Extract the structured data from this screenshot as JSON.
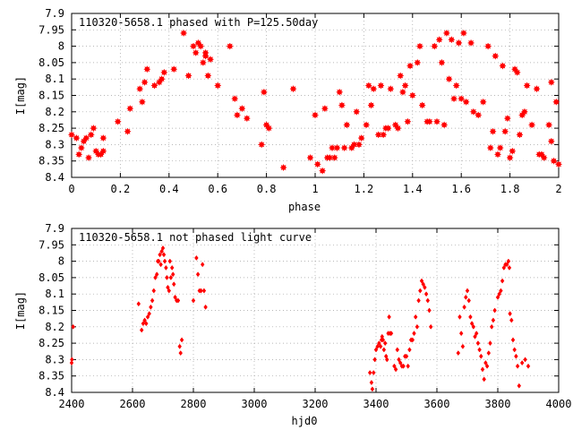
{
  "colors": {
    "points": "#ff0000",
    "axes": "#000000",
    "grid": "#a0a0a0"
  },
  "chart_data": [
    {
      "type": "scatter",
      "title": "110320-5658.1 phased with P=125.50day",
      "xlabel": "phase",
      "ylabel": "I[mag]",
      "xlim": [
        0,
        2
      ],
      "ylim": [
        8.4,
        7.9
      ],
      "y_reversed": true,
      "xticks": [
        0,
        0.2,
        0.4,
        0.6,
        0.8,
        1,
        1.2,
        1.4,
        1.6,
        1.8,
        2
      ],
      "xtick_labels": [
        "0",
        "0.2",
        "0.4",
        "0.6",
        "0.8",
        "1",
        "1.2",
        "1.4",
        "1.6",
        "1.8",
        "2"
      ],
      "yticks": [
        7.9,
        7.95,
        8,
        8.05,
        8.1,
        8.15,
        8.2,
        8.25,
        8.3,
        8.35,
        8.4
      ],
      "ytick_labels": [
        "7.9",
        "7.95",
        "8",
        "8.05",
        "8.1",
        "8.15",
        "8.2",
        "8.25",
        "8.3",
        "8.35",
        "8.4"
      ],
      "grid": true,
      "marker": "star",
      "points": [
        [
          0.0,
          8.27
        ],
        [
          0.02,
          8.28
        ],
        [
          0.03,
          8.33
        ],
        [
          0.04,
          8.31
        ],
        [
          0.05,
          8.29
        ],
        [
          0.06,
          8.28
        ],
        [
          0.07,
          8.34
        ],
        [
          0.08,
          8.27
        ],
        [
          0.09,
          8.25
        ],
        [
          0.1,
          8.32
        ],
        [
          0.11,
          8.33
        ],
        [
          0.12,
          8.33
        ],
        [
          0.13,
          8.32
        ],
        [
          0.13,
          8.28
        ],
        [
          0.19,
          8.23
        ],
        [
          0.23,
          8.26
        ],
        [
          0.24,
          8.19
        ],
        [
          0.28,
          8.13
        ],
        [
          0.29,
          8.17
        ],
        [
          0.3,
          8.11
        ],
        [
          0.31,
          8.07
        ],
        [
          0.34,
          8.12
        ],
        [
          0.36,
          8.11
        ],
        [
          0.37,
          8.1
        ],
        [
          0.38,
          8.08
        ],
        [
          0.42,
          8.07
        ],
        [
          0.46,
          7.96
        ],
        [
          0.48,
          8.09
        ],
        [
          0.5,
          8.0
        ],
        [
          0.51,
          8.02
        ],
        [
          0.52,
          7.99
        ],
        [
          0.53,
          8.0
        ],
        [
          0.54,
          8.05
        ],
        [
          0.55,
          8.03
        ],
        [
          0.55,
          8.02
        ],
        [
          0.56,
          8.09
        ],
        [
          0.57,
          8.04
        ],
        [
          0.6,
          8.12
        ],
        [
          0.65,
          8.0
        ],
        [
          0.67,
          8.16
        ],
        [
          0.68,
          8.21
        ],
        [
          0.7,
          8.19
        ],
        [
          0.72,
          8.22
        ],
        [
          0.78,
          8.3
        ],
        [
          0.79,
          8.14
        ],
        [
          0.8,
          8.24
        ],
        [
          0.81,
          8.25
        ],
        [
          0.87,
          8.37
        ],
        [
          0.91,
          8.13
        ],
        [
          0.98,
          8.34
        ],
        [
          1.0,
          8.21
        ],
        [
          1.01,
          8.36
        ],
        [
          1.03,
          8.38
        ],
        [
          1.04,
          8.19
        ],
        [
          1.05,
          8.34
        ],
        [
          1.06,
          8.34
        ],
        [
          1.07,
          8.31
        ],
        [
          1.08,
          8.34
        ],
        [
          1.09,
          8.31
        ],
        [
          1.1,
          8.14
        ],
        [
          1.11,
          8.18
        ],
        [
          1.12,
          8.31
        ],
        [
          1.13,
          8.24
        ],
        [
          1.15,
          8.31
        ],
        [
          1.16,
          8.3
        ],
        [
          1.17,
          8.2
        ],
        [
          1.18,
          8.3
        ],
        [
          1.19,
          8.28
        ],
        [
          1.21,
          8.24
        ],
        [
          1.22,
          8.12
        ],
        [
          1.23,
          8.18
        ],
        [
          1.24,
          8.13
        ],
        [
          1.26,
          8.27
        ],
        [
          1.27,
          8.12
        ],
        [
          1.28,
          8.27
        ],
        [
          1.29,
          8.25
        ],
        [
          1.3,
          8.25
        ],
        [
          1.31,
          8.13
        ],
        [
          1.33,
          8.24
        ],
        [
          1.34,
          8.25
        ],
        [
          1.35,
          8.09
        ],
        [
          1.36,
          8.14
        ],
        [
          1.37,
          8.12
        ],
        [
          1.38,
          8.23
        ],
        [
          1.39,
          8.06
        ],
        [
          1.4,
          8.15
        ],
        [
          1.42,
          8.05
        ],
        [
          1.43,
          8.0
        ],
        [
          1.44,
          8.18
        ],
        [
          1.46,
          8.23
        ],
        [
          1.47,
          8.23
        ],
        [
          1.49,
          8.0
        ],
        [
          1.5,
          8.23
        ],
        [
          1.51,
          7.98
        ],
        [
          1.52,
          8.05
        ],
        [
          1.53,
          8.24
        ],
        [
          1.54,
          7.96
        ],
        [
          1.55,
          8.1
        ],
        [
          1.56,
          7.98
        ],
        [
          1.57,
          8.16
        ],
        [
          1.58,
          8.12
        ],
        [
          1.59,
          7.99
        ],
        [
          1.6,
          8.16
        ],
        [
          1.61,
          7.96
        ],
        [
          1.62,
          8.17
        ],
        [
          1.64,
          7.99
        ],
        [
          1.65,
          8.2
        ],
        [
          1.67,
          8.21
        ],
        [
          1.69,
          8.17
        ],
        [
          1.71,
          8.0
        ],
        [
          1.72,
          8.31
        ],
        [
          1.73,
          8.26
        ],
        [
          1.74,
          8.03
        ],
        [
          1.75,
          8.33
        ],
        [
          1.76,
          8.31
        ],
        [
          1.77,
          8.06
        ],
        [
          1.78,
          8.26
        ],
        [
          1.79,
          8.22
        ],
        [
          1.8,
          8.34
        ],
        [
          1.81,
          8.32
        ],
        [
          1.82,
          8.07
        ],
        [
          1.83,
          8.08
        ],
        [
          1.84,
          8.27
        ],
        [
          1.85,
          8.21
        ],
        [
          1.86,
          8.2
        ],
        [
          1.87,
          8.12
        ],
        [
          1.89,
          8.24
        ],
        [
          1.91,
          8.13
        ],
        [
          1.92,
          8.33
        ],
        [
          1.93,
          8.33
        ],
        [
          1.94,
          8.34
        ],
        [
          1.96,
          8.24
        ],
        [
          1.97,
          8.11
        ],
        [
          1.97,
          8.29
        ],
        [
          1.98,
          8.35
        ],
        [
          1.99,
          8.17
        ],
        [
          2.0,
          8.36
        ]
      ]
    },
    {
      "type": "scatter",
      "title": "110320-5658.1 not phased light curve",
      "xlabel": "hjd0",
      "ylabel": "I[mag]",
      "xlim": [
        2400,
        4000
      ],
      "ylim": [
        8.4,
        7.9
      ],
      "y_reversed": true,
      "xticks": [
        2400,
        2600,
        2800,
        3000,
        3200,
        3400,
        3600,
        3800,
        4000
      ],
      "xtick_labels": [
        "2400",
        "2600",
        "2800",
        "3000",
        "3200",
        "3400",
        "3600",
        "3800",
        "4000"
      ],
      "yticks": [
        7.9,
        7.95,
        8,
        8.05,
        8.1,
        8.15,
        8.2,
        8.25,
        8.3,
        8.35,
        8.4
      ],
      "ytick_labels": [
        "7.9",
        "7.95",
        "8",
        "8.05",
        "8.1",
        "8.15",
        "8.2",
        "8.25",
        "8.3",
        "8.35",
        "8.4"
      ],
      "grid": true,
      "marker": "diamond",
      "points": [
        [
          2400,
          8.31
        ],
        [
          2401,
          8.3
        ],
        [
          2405,
          8.2
        ],
        [
          2620,
          8.13
        ],
        [
          2630,
          8.21
        ],
        [
          2635,
          8.19
        ],
        [
          2640,
          8.18
        ],
        [
          2645,
          8.19
        ],
        [
          2650,
          8.17
        ],
        [
          2655,
          8.16
        ],
        [
          2660,
          8.14
        ],
        [
          2665,
          8.12
        ],
        [
          2670,
          8.09
        ],
        [
          2675,
          8.05
        ],
        [
          2680,
          8.04
        ],
        [
          2683,
          8.0
        ],
        [
          2686,
          8.0
        ],
        [
          2690,
          7.98
        ],
        [
          2693,
          8.01
        ],
        [
          2696,
          7.97
        ],
        [
          2700,
          7.96
        ],
        [
          2703,
          7.98
        ],
        [
          2706,
          8.0
        ],
        [
          2710,
          8.02
        ],
        [
          2713,
          8.05
        ],
        [
          2716,
          8.08
        ],
        [
          2720,
          8.09
        ],
        [
          2723,
          8.0
        ],
        [
          2726,
          8.05
        ],
        [
          2730,
          8.02
        ],
        [
          2733,
          8.04
        ],
        [
          2736,
          8.07
        ],
        [
          2740,
          8.11
        ],
        [
          2745,
          8.12
        ],
        [
          2750,
          8.12
        ],
        [
          2755,
          8.26
        ],
        [
          2758,
          8.28
        ],
        [
          2762,
          8.24
        ],
        [
          2800,
          8.12
        ],
        [
          2810,
          7.99
        ],
        [
          2815,
          8.04
        ],
        [
          2820,
          8.09
        ],
        [
          2825,
          8.09
        ],
        [
          2830,
          8.01
        ],
        [
          2835,
          8.09
        ],
        [
          2840,
          8.14
        ],
        [
          3380,
          8.34
        ],
        [
          3385,
          8.37
        ],
        [
          3388,
          8.39
        ],
        [
          3392,
          8.34
        ],
        [
          3396,
          8.3
        ],
        [
          3400,
          8.27
        ],
        [
          3405,
          8.26
        ],
        [
          3410,
          8.25
        ],
        [
          3415,
          8.26
        ],
        [
          3418,
          8.24
        ],
        [
          3420,
          8.23
        ],
        [
          3423,
          8.24
        ],
        [
          3426,
          8.27
        ],
        [
          3430,
          8.25
        ],
        [
          3433,
          8.29
        ],
        [
          3436,
          8.3
        ],
        [
          3440,
          8.22
        ],
        [
          3443,
          8.17
        ],
        [
          3446,
          8.22
        ],
        [
          3450,
          8.22
        ],
        [
          3460,
          8.32
        ],
        [
          3465,
          8.33
        ],
        [
          3470,
          8.27
        ],
        [
          3475,
          8.3
        ],
        [
          3480,
          8.31
        ],
        [
          3485,
          8.32
        ],
        [
          3490,
          8.32
        ],
        [
          3495,
          8.29
        ],
        [
          3500,
          8.29
        ],
        [
          3505,
          8.32
        ],
        [
          3510,
          8.27
        ],
        [
          3515,
          8.24
        ],
        [
          3520,
          8.24
        ],
        [
          3525,
          8.22
        ],
        [
          3530,
          8.17
        ],
        [
          3535,
          8.2
        ],
        [
          3540,
          8.12
        ],
        [
          3545,
          8.09
        ],
        [
          3550,
          8.06
        ],
        [
          3555,
          8.07
        ],
        [
          3560,
          8.08
        ],
        [
          3565,
          8.1
        ],
        [
          3570,
          8.12
        ],
        [
          3575,
          8.15
        ],
        [
          3580,
          8.2
        ],
        [
          3670,
          8.28
        ],
        [
          3675,
          8.17
        ],
        [
          3680,
          8.22
        ],
        [
          3685,
          8.26
        ],
        [
          3690,
          8.14
        ],
        [
          3695,
          8.11
        ],
        [
          3700,
          8.09
        ],
        [
          3705,
          8.12
        ],
        [
          3710,
          8.17
        ],
        [
          3715,
          8.19
        ],
        [
          3720,
          8.2
        ],
        [
          3725,
          8.23
        ],
        [
          3730,
          8.22
        ],
        [
          3735,
          8.25
        ],
        [
          3740,
          8.27
        ],
        [
          3745,
          8.29
        ],
        [
          3750,
          8.33
        ],
        [
          3755,
          8.36
        ],
        [
          3760,
          8.31
        ],
        [
          3765,
          8.32
        ],
        [
          3770,
          8.28
        ],
        [
          3775,
          8.25
        ],
        [
          3780,
          8.2
        ],
        [
          3785,
          8.18
        ],
        [
          3790,
          8.15
        ],
        [
          3800,
          8.11
        ],
        [
          3805,
          8.1
        ],
        [
          3810,
          8.09
        ],
        [
          3815,
          8.06
        ],
        [
          3820,
          8.02
        ],
        [
          3825,
          8.01
        ],
        [
          3830,
          8.01
        ],
        [
          3835,
          8.0
        ],
        [
          3838,
          8.02
        ],
        [
          3840,
          8.16
        ],
        [
          3845,
          8.18
        ],
        [
          3850,
          8.24
        ],
        [
          3855,
          8.27
        ],
        [
          3860,
          8.29
        ],
        [
          3865,
          8.32
        ],
        [
          3870,
          8.38
        ],
        [
          3880,
          8.31
        ],
        [
          3890,
          8.3
        ],
        [
          3900,
          8.32
        ]
      ]
    }
  ]
}
